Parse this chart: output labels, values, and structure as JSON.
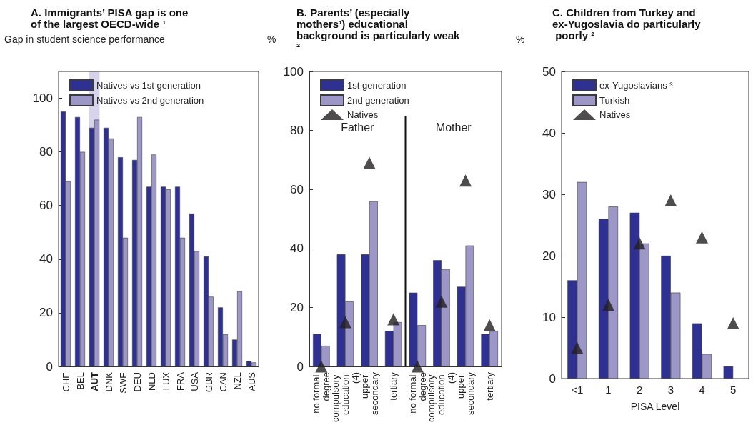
{
  "chart_data": [
    {
      "type": "bar",
      "title": "A. Immigrants’ PISA gap is one of the largest OECD-wide ¹",
      "ylabel": "Gap in student science performance",
      "categories": [
        "CHE",
        "BEL",
        "AUT",
        "DNK",
        "SWE",
        "DEU",
        "NLD",
        "LUX",
        "FRA",
        "USA",
        "GBR",
        "CAN",
        "NZL",
        "AUS"
      ],
      "series": [
        {
          "name": "Natives vs 1st generation",
          "color": "#2e3192",
          "values": [
            95,
            93,
            89,
            89,
            78,
            77,
            67,
            67,
            67,
            57,
            41,
            22,
            10,
            2
          ]
        },
        {
          "name": "Natives vs 2nd generation",
          "color": "#9d97c8",
          "values": [
            69,
            80,
            92,
            85,
            48,
            93,
            79,
            66,
            48,
            43,
            26,
            12,
            28,
            1.5
          ]
        }
      ],
      "bands": [
        {
          "axis": "x",
          "from": "AUT",
          "to": "AUT",
          "color": "#d6d3ea"
        }
      ],
      "ylim": [
        0,
        110
      ],
      "yticks": [
        0,
        20,
        40,
        60,
        80,
        100
      ],
      "grid": false,
      "legend": "top left"
    },
    {
      "type": "bar",
      "title": "B. Parents’ (especially mothers’) educational background is particularly weak ²",
      "ylabel": "%",
      "categories": [
        "no formal degree",
        "compulsory education (4)",
        "upper secondary",
        "tertiary",
        "no formal degree",
        "compulsory education (4)",
        "upper secondary",
        "tertiary"
      ],
      "series": [
        {
          "name": "1st generation",
          "color": "#2e3192",
          "values": [
            11,
            38,
            38,
            12,
            25,
            36,
            27,
            11
          ]
        },
        {
          "name": "2nd generation",
          "color": "#9d97c8",
          "values": [
            7,
            22,
            56,
            15,
            14,
            33,
            41,
            12
          ]
        },
        {
          "name": "Natives",
          "type": "scatter",
          "marker": "triangle",
          "color": "#231f20",
          "values": [
            0,
            15,
            69,
            16,
            0,
            22,
            63,
            14
          ]
        }
      ],
      "annotations": [
        "Father",
        "Mother"
      ],
      "ylim": [
        0,
        100
      ],
      "yticks": [
        0,
        20,
        40,
        60,
        80,
        100
      ],
      "grid": false,
      "legend": "top left"
    },
    {
      "type": "bar",
      "title": "C. Children from Turkey and ex-Yugoslavia do particularly poorly ²",
      "ylabel": "%",
      "xlabel": "PISA Level",
      "categories": [
        "<1",
        "1",
        "2",
        "3",
        "4",
        "5"
      ],
      "series": [
        {
          "name": "ex-Yugoslavians ³",
          "color": "#2e3192",
          "values": [
            16,
            26,
            27,
            20,
            9,
            2
          ]
        },
        {
          "name": "Turkish",
          "color": "#9d97c8",
          "values": [
            32,
            28,
            22,
            14,
            4,
            null
          ]
        },
        {
          "name": "Natives",
          "type": "scatter",
          "marker": "triangle",
          "color": "#231f20",
          "values": [
            5,
            12,
            22,
            29,
            23,
            9
          ]
        }
      ],
      "ylim": [
        0,
        50
      ],
      "yticks": [
        0,
        10,
        20,
        30,
        40,
        50
      ],
      "grid": false,
      "legend": "top left"
    }
  ]
}
